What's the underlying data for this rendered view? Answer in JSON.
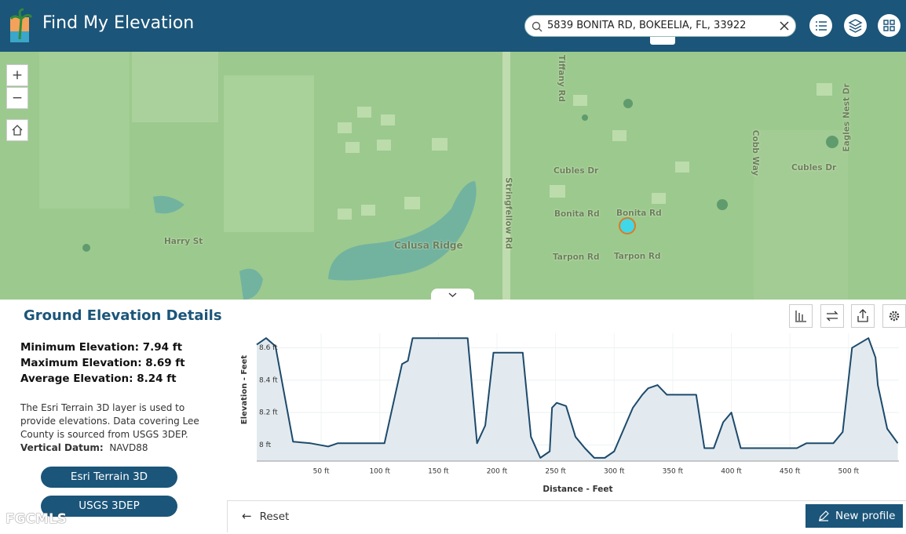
{
  "header": {
    "title": "Find My Elevation",
    "search": "5839 BONITA RD, BOKEELIA, FL, 33922"
  },
  "map": {
    "labels": [
      "Tiffany Rd",
      "Cubles Dr",
      "Bonita Rd",
      "Bonita Rd",
      "Tarpon Rd",
      "Tarpon Rd",
      "Harry St",
      "Calusa Ridge",
      "Stringfellow Rd",
      "Cobb Way",
      "Eagles Nest Dr",
      "Cubles Dr"
    ]
  },
  "panel": {
    "title": "Ground Elevation Details",
    "stats": [
      "Minimum Elevation: 7.94 ft",
      "Maximum Elevation: 8.69 ft",
      "Average Elevation: 8.24 ft"
    ],
    "description": "The Esri Terrain 3D layer is used to provide elevations. Data covering Lee County is sourced from USGS 3DEP.",
    "datum_label": "Vertical Datum:",
    "datum_value": "NAVD88",
    "buttons": [
      "Esri Terrain 3D",
      "USGS 3DEP"
    ],
    "reset": "Reset",
    "new_profile": "New profile"
  },
  "watermark": "FGCMLS",
  "chart_data": {
    "type": "area",
    "x_label": "Distance - Feet",
    "y_label": "Elevation - Feet",
    "color": "#1d4a6b",
    "fill": "#e2eaef",
    "grid": true,
    "xlim": [
      -5,
      543
    ],
    "ylim": [
      7.9,
      8.69
    ],
    "xticks": [
      {
        "value": 50,
        "label": "50 ft"
      },
      {
        "value": 100,
        "label": "100 ft"
      },
      {
        "value": 150,
        "label": "150 ft"
      },
      {
        "value": 200,
        "label": "200 ft"
      },
      {
        "value": 250,
        "label": "250 ft"
      },
      {
        "value": 300,
        "label": "300 ft"
      },
      {
        "value": 350,
        "label": "350 ft"
      },
      {
        "value": 400,
        "label": "400 ft"
      },
      {
        "value": 450,
        "label": "450 ft"
      },
      {
        "value": 500,
        "label": "500 ft"
      }
    ],
    "yticks": [
      {
        "value": 8,
        "label": "8 ft"
      },
      {
        "value": 8.2,
        "label": "8.2 ft"
      },
      {
        "value": 8.4,
        "label": "8.4 ft"
      },
      {
        "value": 8.6,
        "label": "8.6 ft"
      }
    ],
    "x": [
      -5,
      3,
      11,
      26,
      41,
      56,
      64,
      104,
      119,
      124,
      128,
      175,
      183,
      190,
      197,
      222,
      229,
      237,
      245,
      247,
      251,
      259,
      267,
      275,
      283,
      292,
      300,
      316,
      324,
      329,
      337,
      345,
      370,
      377,
      385,
      393,
      400,
      408,
      456,
      464,
      487,
      495,
      503,
      517,
      523,
      525,
      533,
      542
    ],
    "values": [
      8.62,
      8.66,
      8.61,
      8.02,
      8.01,
      7.99,
      8.01,
      8.01,
      8.5,
      8.52,
      8.66,
      8.66,
      8.01,
      8.12,
      8.57,
      8.57,
      8.05,
      7.92,
      7.96,
      8.23,
      8.26,
      8.24,
      8.05,
      7.98,
      7.92,
      7.92,
      7.96,
      8.23,
      8.31,
      8.35,
      8.37,
      8.31,
      8.31,
      7.98,
      7.98,
      8.14,
      8.2,
      7.98,
      7.98,
      8.01,
      8.01,
      8.08,
      8.6,
      8.66,
      8.54,
      8.37,
      8.1,
      8.01
    ]
  }
}
